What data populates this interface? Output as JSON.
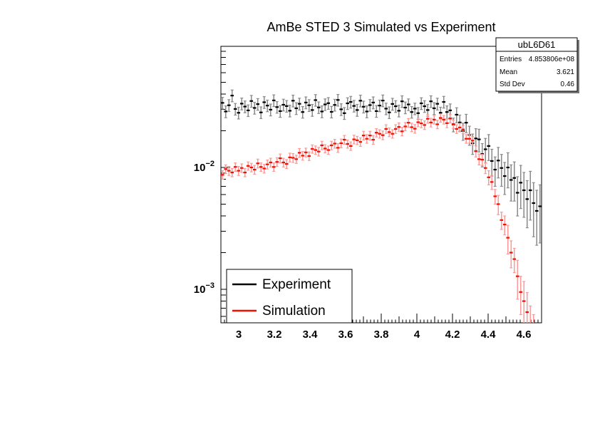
{
  "title": "AmBe STED 3 Simulated vs Experiment",
  "stats_box": {
    "title": "ubL6D61",
    "rows": [
      {
        "label": "Entries",
        "value": "4.853806e+08"
      },
      {
        "label": "Mean",
        "value": "3.621"
      },
      {
        "label": "Std Dev",
        "value": "0.46"
      }
    ]
  },
  "legend": {
    "items": [
      {
        "label": "Experiment",
        "color": "#000000"
      },
      {
        "label": "Simulation",
        "color": "#ee1100"
      }
    ]
  },
  "colors": {
    "frame": "#000000",
    "background": "#ffffff",
    "experiment_marker": "#000000",
    "experiment_bar": "#8a8a8a",
    "simulation_marker": "#f21000",
    "simulation_bar": "#ff9898"
  },
  "chart_data": {
    "type": "scatter",
    "title": "AmBe STED 3 Simulated vs Experiment",
    "x_axis": {
      "min": 2.9,
      "max": 4.7,
      "tick_values": [
        3,
        3.2,
        3.4,
        3.6,
        3.8,
        4,
        4.2,
        4.4,
        4.6
      ],
      "tick_labels": [
        "3",
        "3.2",
        "3.4",
        "3.6",
        "3.8",
        "4",
        "4.2",
        "4.4",
        "4.6"
      ],
      "minor_tick_step": 0.02,
      "grid": false
    },
    "y_axis": {
      "scale": "log",
      "min": 0.00053,
      "max": 0.1,
      "decades": [
        {
          "base": "10",
          "exponent": "−2",
          "value": 0.01
        },
        {
          "base": "10",
          "exponent": "−3",
          "value": 0.001
        }
      ],
      "grid": false
    },
    "legend_position": "bottom-left",
    "series": [
      {
        "name": "Experiment",
        "x_start": 2.909,
        "x_step": 0.018,
        "y": [
          0.0339,
          0.0288,
          0.0324,
          0.0389,
          0.0302,
          0.0281,
          0.0334,
          0.0316,
          0.0294,
          0.0351,
          0.0308,
          0.0331,
          0.0283,
          0.0343,
          0.0322,
          0.0298,
          0.0355,
          0.0313,
          0.029,
          0.0327,
          0.0319,
          0.0292,
          0.0353,
          0.0306,
          0.0333,
          0.0285,
          0.0341,
          0.0324,
          0.0296,
          0.0357,
          0.0311,
          0.0288,
          0.0329,
          0.0337,
          0.0286,
          0.0326,
          0.0358,
          0.03,
          0.0279,
          0.0336,
          0.0345,
          0.032,
          0.0296,
          0.0353,
          0.0315,
          0.0288,
          0.0325,
          0.0341,
          0.029,
          0.0322,
          0.0354,
          0.0304,
          0.0283,
          0.0332,
          0.0318,
          0.0292,
          0.0349,
          0.031,
          0.0329,
          0.0285,
          0.0304,
          0.0279,
          0.0336,
          0.0318,
          0.0296,
          0.0349,
          0.0306,
          0.0333,
          0.0281,
          0.0345,
          0.0285,
          0.0294,
          0.0225,
          0.0271,
          0.0234,
          0.0199,
          0.0233,
          0.0185,
          0.0158,
          0.0173,
          0.017,
          0.0129,
          0.0141,
          0.015,
          0.0113,
          0.0096,
          0.0114,
          0.0099,
          0.0085,
          0.01,
          0.0079,
          0.0082,
          0.0062,
          0.0075,
          0.0065,
          0.0055,
          0.0065,
          0.0051,
          0.0044,
          0.0048
        ],
        "err": [
          0.0037,
          0.0032,
          0.0036,
          0.0043,
          0.0033,
          0.0031,
          0.0037,
          0.0035,
          0.0032,
          0.0039,
          0.0034,
          0.0036,
          0.0031,
          0.0038,
          0.0035,
          0.0033,
          0.0039,
          0.0034,
          0.0032,
          0.0036,
          0.0035,
          0.0032,
          0.0039,
          0.0034,
          0.0037,
          0.0031,
          0.0038,
          0.0036,
          0.0033,
          0.0039,
          0.0034,
          0.0032,
          0.0036,
          0.0037,
          0.0031,
          0.0036,
          0.0039,
          0.0033,
          0.0031,
          0.0037,
          0.0038,
          0.0035,
          0.0033,
          0.0039,
          0.0035,
          0.0032,
          0.0036,
          0.0038,
          0.0032,
          0.0035,
          0.0039,
          0.0033,
          0.0031,
          0.0037,
          0.0035,
          0.0032,
          0.0038,
          0.0034,
          0.0036,
          0.0031,
          0.0033,
          0.0031,
          0.0037,
          0.0035,
          0.0033,
          0.0038,
          0.0034,
          0.0037,
          0.0031,
          0.0038,
          0.0035,
          0.0038,
          0.0029,
          0.0038,
          0.0035,
          0.0032,
          0.004,
          0.0033,
          0.003,
          0.0035,
          0.0036,
          0.0028,
          0.0032,
          0.0036,
          0.0028,
          0.0026,
          0.0032,
          0.0029,
          0.0025,
          0.0032,
          0.0026,
          0.0029,
          0.0022,
          0.0029,
          0.0026,
          0.0023,
          0.0028,
          0.0024,
          0.0021,
          0.0024
        ]
      },
      {
        "name": "Simulation",
        "x_start": 2.909,
        "x_step": 0.018,
        "y": [
          0.0087,
          0.0097,
          0.0094,
          0.0091,
          0.0101,
          0.0094,
          0.0099,
          0.0091,
          0.0103,
          0.01,
          0.0096,
          0.0108,
          0.0101,
          0.0098,
          0.0106,
          0.011,
          0.0101,
          0.0111,
          0.0119,
          0.011,
          0.0107,
          0.0121,
          0.012,
          0.0117,
          0.0132,
          0.0125,
          0.0133,
          0.0124,
          0.0142,
          0.0139,
          0.0135,
          0.0152,
          0.0143,
          0.0139,
          0.0152,
          0.0157,
          0.0145,
          0.0158,
          0.0169,
          0.0156,
          0.015,
          0.017,
          0.0167,
          0.0162,
          0.0183,
          0.0172,
          0.0183,
          0.0169,
          0.0193,
          0.0189,
          0.0184,
          0.0207,
          0.0195,
          0.0189,
          0.0207,
          0.0215,
          0.0198,
          0.0217,
          0.0233,
          0.0214,
          0.0208,
          0.0235,
          0.023,
          0.0223,
          0.0251,
          0.0234,
          0.0247,
          0.0226,
          0.0255,
          0.0247,
          0.0231,
          0.0252,
          0.0227,
          0.0207,
          0.0213,
          0.0205,
          0.0172,
          0.0172,
          0.0166,
          0.0136,
          0.0117,
          0.0116,
          0.0099,
          0.0083,
          0.0076,
          0.0058,
          0.005,
          0.0037,
          0.0034,
          0.00265,
          0.002,
          0.00177,
          0.00128,
          0.00095,
          0.0008,
          0.00065,
          0.00047,
          0.0004
        ],
        "err": [
          0.0007,
          0.0008,
          0.0008,
          0.0007,
          0.0008,
          0.0008,
          0.0008,
          0.0007,
          0.0008,
          0.0008,
          0.0008,
          0.0009,
          0.0008,
          0.0008,
          0.0009,
          0.0009,
          0.0008,
          0.0009,
          0.001,
          0.0009,
          0.0009,
          0.001,
          0.001,
          0.0009,
          0.0011,
          0.001,
          0.0011,
          0.001,
          0.0011,
          0.0011,
          0.0011,
          0.0012,
          0.0011,
          0.0011,
          0.0012,
          0.0013,
          0.0012,
          0.0013,
          0.0014,
          0.0012,
          0.0012,
          0.0014,
          0.0013,
          0.0013,
          0.0015,
          0.0014,
          0.0015,
          0.0014,
          0.0015,
          0.0015,
          0.0015,
          0.0017,
          0.0016,
          0.0015,
          0.0017,
          0.0017,
          0.0016,
          0.0017,
          0.0019,
          0.0017,
          0.0017,
          0.0019,
          0.0018,
          0.0018,
          0.002,
          0.0019,
          0.002,
          0.0018,
          0.002,
          0.002,
          0.0019,
          0.002,
          0.0018,
          0.0017,
          0.0017,
          0.0016,
          0.0014,
          0.0014,
          0.0013,
          0.0014,
          0.0012,
          0.0012,
          0.001,
          0.0011,
          0.001,
          0.0008,
          0.0009,
          0.0006,
          0.0006,
          0.0007,
          0.0005,
          0.0004,
          0.00045,
          0.00033,
          0.00036,
          0.00029,
          0.00026,
          0.00022
        ]
      }
    ]
  }
}
